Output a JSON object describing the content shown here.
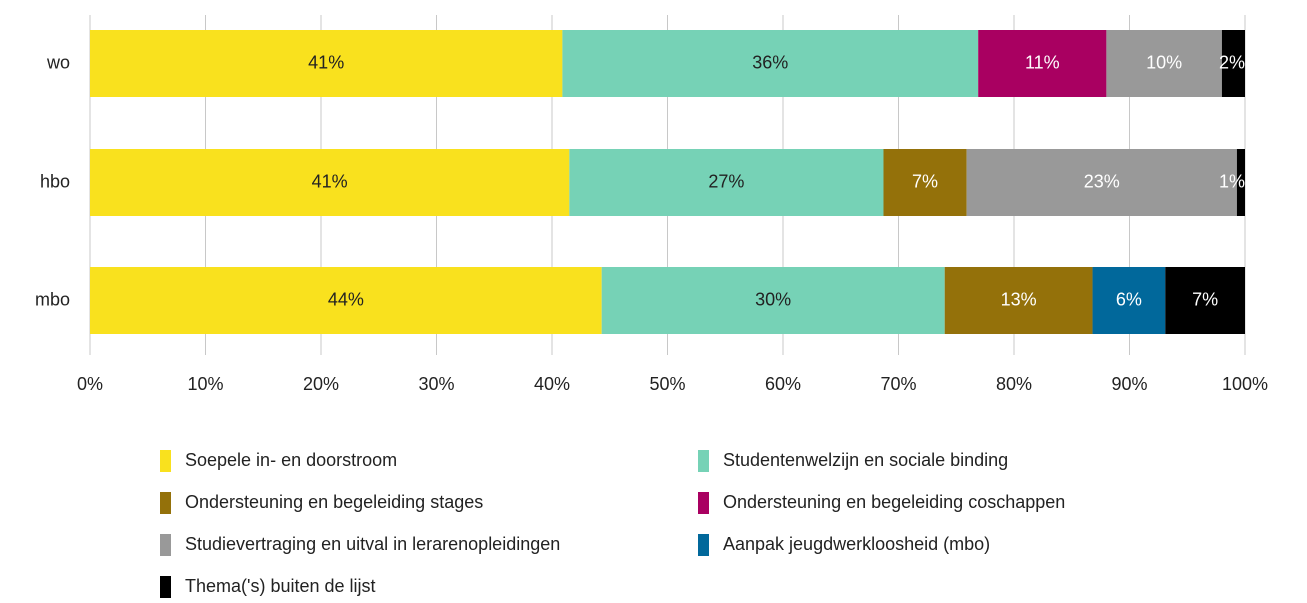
{
  "chart_data": {
    "type": "stacked_bar_horizontal",
    "categories": [
      "wo",
      "hbo",
      "mbo"
    ],
    "series": [
      {
        "name": "Soepele in- en doorstroom",
        "color": "#f9e11e",
        "values": [
          40.9,
          41.5,
          44.3
        ],
        "value_labels": [
          "41%",
          "41%",
          "44%"
        ]
      },
      {
        "name": "Studentenwelzijn en sociale binding",
        "color": "#76d2b6",
        "values": [
          36.0,
          27.2,
          29.7
        ],
        "value_labels": [
          "36%",
          "27%",
          "30%"
        ]
      },
      {
        "name": "Ondersteuning en begeleiding stages",
        "color": "#94710a",
        "values": [
          null,
          7.2,
          12.8
        ],
        "value_labels": [
          null,
          "7%",
          "13%"
        ]
      },
      {
        "name": "Ondersteuning en begeleiding coschappen",
        "color": "#a90061",
        "values": [
          11.1,
          null,
          null
        ],
        "value_labels": [
          "11%",
          null,
          null
        ]
      },
      {
        "name": "Studievertraging en uitval in lerarenopleidingen",
        "color": "#999999",
        "values": [
          10.0,
          23.4,
          null
        ],
        "value_labels": [
          "10%",
          "23%",
          null
        ]
      },
      {
        "name": "Aanpak jeugdwerkloosheid (mbo)",
        "color": "#01689b",
        "values": [
          null,
          null,
          6.3
        ],
        "value_labels": [
          null,
          null,
          "6%"
        ]
      },
      {
        "name": "Thema('s) buiten de lijst",
        "color": "#000000",
        "values": [
          2.0,
          0.7,
          6.9
        ],
        "value_labels": [
          "2%",
          "1%",
          "7%"
        ]
      }
    ],
    "xlim": [
      0,
      100
    ],
    "xticks": [
      {
        "value": 0,
        "label": "0%"
      },
      {
        "value": 10,
        "label": "10%"
      },
      {
        "value": 20,
        "label": "20%"
      },
      {
        "value": 30,
        "label": "30%"
      },
      {
        "value": 40,
        "label": "40%"
      },
      {
        "value": 50,
        "label": "50%"
      },
      {
        "value": 60,
        "label": "60%"
      },
      {
        "value": 70,
        "label": "70%"
      },
      {
        "value": 80,
        "label": "80%"
      },
      {
        "value": 90,
        "label": "90%"
      },
      {
        "value": 100,
        "label": "100%"
      }
    ],
    "grid": true
  }
}
